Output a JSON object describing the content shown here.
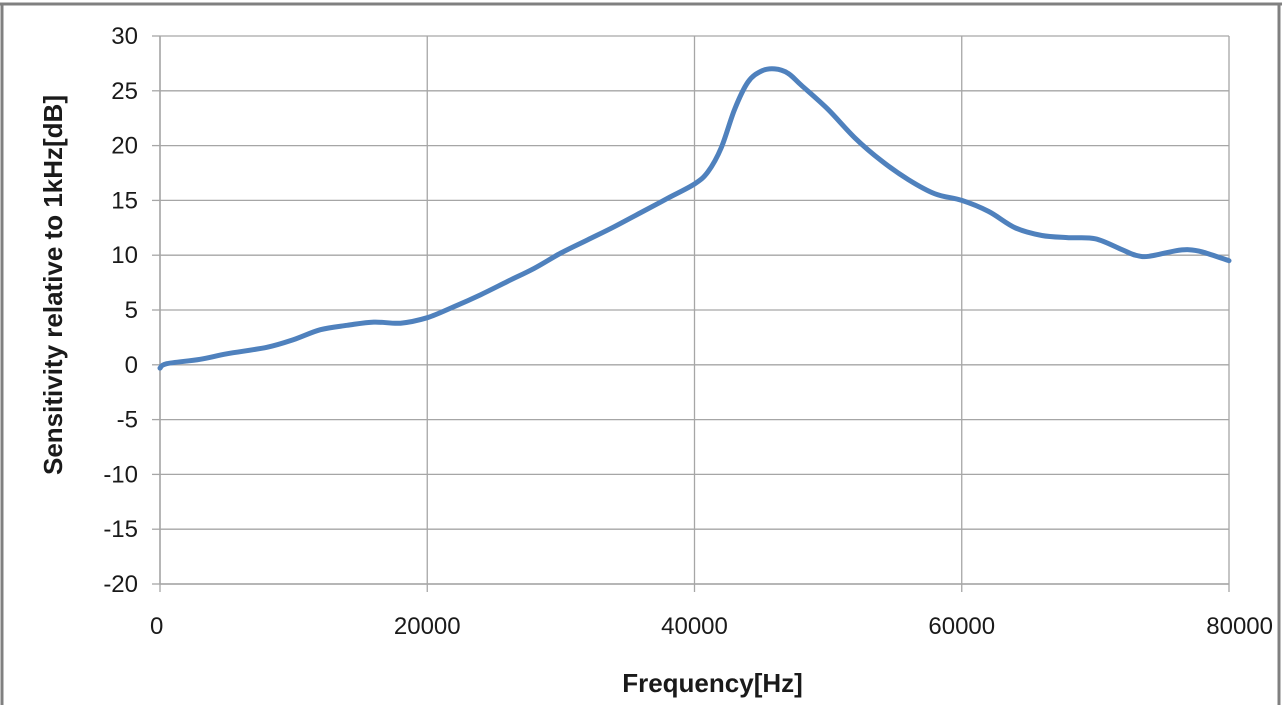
{
  "chart_data": {
    "type": "line",
    "title": "",
    "xlabel": "Frequency[Hz]",
    "ylabel": "Sensitivity relative to 1kHz[dB]",
    "xlim": [
      0,
      80000
    ],
    "ylim": [
      -20,
      30
    ],
    "x_ticks": [
      "0",
      "20000",
      "40000",
      "60000",
      "80000"
    ],
    "y_ticks": [
      "30",
      "25",
      "20",
      "15",
      "10",
      "5",
      "0",
      "-5",
      "-10",
      "-15",
      "-20"
    ],
    "grid": true,
    "legend": "none",
    "colors": {
      "line": "#4f81bd",
      "grid": "#a6a6a6",
      "frame": "#808080"
    },
    "series": [
      {
        "x": [
          0,
          500,
          3000,
          5000,
          8000,
          10000,
          12000,
          14000,
          16000,
          18000,
          20000,
          22000,
          24000,
          26000,
          28000,
          30000,
          32000,
          34000,
          36000,
          38000,
          40000,
          41000,
          42000,
          43000,
          44000,
          45000,
          46000,
          47000,
          48000,
          50000,
          52000,
          54000,
          56000,
          58000,
          60000,
          62000,
          64000,
          66000,
          68000,
          70000,
          72000,
          73000,
          74000,
          76000,
          77000,
          78000,
          80000
        ],
        "y": [
          -0.3,
          0.1,
          0.5,
          1.0,
          1.6,
          2.3,
          3.2,
          3.6,
          3.9,
          3.8,
          4.3,
          5.3,
          6.4,
          7.6,
          8.8,
          10.2,
          11.4,
          12.6,
          13.9,
          15.2,
          16.5,
          17.6,
          19.8,
          23.3,
          25.8,
          26.8,
          27.0,
          26.6,
          25.5,
          23.3,
          20.7,
          18.6,
          16.9,
          15.6,
          15.0,
          14.0,
          12.5,
          11.8,
          11.6,
          11.5,
          10.5,
          10.0,
          9.9,
          10.4,
          10.5,
          10.3,
          9.5
        ]
      }
    ]
  }
}
